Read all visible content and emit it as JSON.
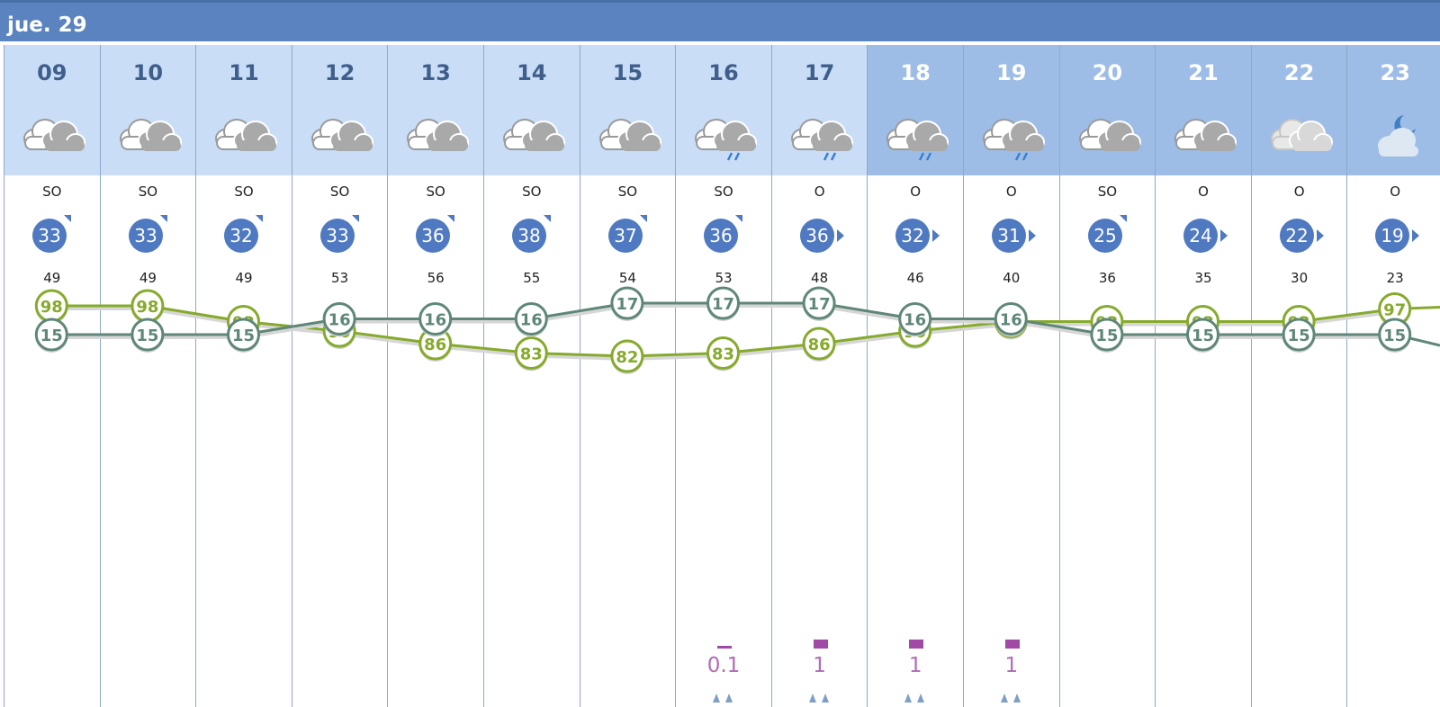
{
  "day_label": "jue. 29",
  "colors": {
    "header_bg": "#5b83c0",
    "day_cell_bg": "#c9ddf7",
    "night_cell_bg": "#9dbde6",
    "wind_badge": "#4f79c0",
    "temperature_line": "#5f8777",
    "humidity_line": "#86aa2c",
    "precip_color": "#a04aa5"
  },
  "hours": [
    {
      "hour": "09",
      "period": "day",
      "sky_icon": "cloudy-icon",
      "wind_dir": "SO",
      "wind_speed": "33",
      "gust": "49",
      "temp": "15",
      "humidity": "98",
      "precip": ""
    },
    {
      "hour": "10",
      "period": "day",
      "sky_icon": "cloudy-icon",
      "wind_dir": "SO",
      "wind_speed": "33",
      "gust": "49",
      "temp": "15",
      "humidity": "98",
      "precip": ""
    },
    {
      "hour": "11",
      "period": "day",
      "sky_icon": "cloudy-icon",
      "wind_dir": "SO",
      "wind_speed": "32",
      "gust": "49",
      "temp": "15",
      "humidity": "93",
      "precip": ""
    },
    {
      "hour": "12",
      "period": "day",
      "sky_icon": "cloudy-icon",
      "wind_dir": "SO",
      "wind_speed": "33",
      "gust": "53",
      "temp": "16",
      "humidity": "90",
      "precip": ""
    },
    {
      "hour": "13",
      "period": "day",
      "sky_icon": "cloudy-icon",
      "wind_dir": "SO",
      "wind_speed": "36",
      "gust": "56",
      "temp": "16",
      "humidity": "86",
      "precip": ""
    },
    {
      "hour": "14",
      "period": "day",
      "sky_icon": "cloudy-icon",
      "wind_dir": "SO",
      "wind_speed": "38",
      "gust": "55",
      "temp": "16",
      "humidity": "83",
      "precip": ""
    },
    {
      "hour": "15",
      "period": "day",
      "sky_icon": "cloudy-icon",
      "wind_dir": "SO",
      "wind_speed": "37",
      "gust": "54",
      "temp": "17",
      "humidity": "82",
      "precip": ""
    },
    {
      "hour": "16",
      "period": "day",
      "sky_icon": "cloudy-rain-icon",
      "wind_dir": "SO",
      "wind_speed": "36",
      "gust": "53",
      "temp": "17",
      "humidity": "83",
      "precip": "0.1"
    },
    {
      "hour": "17",
      "period": "day",
      "sky_icon": "cloudy-rain-icon",
      "wind_dir": "O",
      "wind_speed": "36",
      "gust": "48",
      "temp": "17",
      "humidity": "86",
      "precip": "1"
    },
    {
      "hour": "18",
      "period": "night",
      "sky_icon": "cloudy-rain-icon",
      "wind_dir": "O",
      "wind_speed": "32",
      "gust": "46",
      "temp": "16",
      "humidity": "90",
      "precip": "1"
    },
    {
      "hour": "19",
      "period": "night",
      "sky_icon": "cloudy-rain-icon",
      "wind_dir": "O",
      "wind_speed": "31",
      "gust": "40",
      "temp": "16",
      "humidity": "93",
      "precip": "1"
    },
    {
      "hour": "20",
      "period": "night",
      "sky_icon": "cloudy-icon",
      "wind_dir": "SO",
      "wind_speed": "25",
      "gust": "36",
      "temp": "15",
      "humidity": "93",
      "precip": ""
    },
    {
      "hour": "21",
      "period": "night",
      "sky_icon": "cloudy-icon",
      "wind_dir": "O",
      "wind_speed": "24",
      "gust": "35",
      "temp": "15",
      "humidity": "93",
      "precip": ""
    },
    {
      "hour": "22",
      "period": "night",
      "sky_icon": "light-cloud-icon",
      "wind_dir": "O",
      "wind_speed": "22",
      "gust": "30",
      "temp": "15",
      "humidity": "93",
      "precip": ""
    },
    {
      "hour": "23",
      "period": "night",
      "sky_icon": "moon-cloud-icon",
      "wind_dir": "O",
      "wind_speed": "19",
      "gust": "23",
      "temp": "15",
      "humidity": "97",
      "precip": ""
    }
  ]
}
